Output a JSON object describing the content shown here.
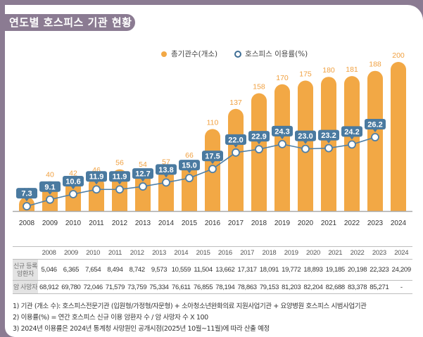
{
  "title": "연도별 호스피스 기관 현황",
  "legend": {
    "bar_label": "총기관수(개소)",
    "line_label": "호스피스 이용률(%)"
  },
  "colors": {
    "frame": "#8b7b92",
    "bar": "#f2a845",
    "bar_label": "#f0a040",
    "line": "#4f7fa6",
    "line_label_bg": "#4a7aa0"
  },
  "chart_data": {
    "type": "bar",
    "title": "연도별 호스피스 기관 현황",
    "xlabel": "",
    "ylabel": "",
    "categories": [
      "2008",
      "2009",
      "2010",
      "2011",
      "2012",
      "2013",
      "2014",
      "2015",
      "2016",
      "2017",
      "2018",
      "2019",
      "2020",
      "2021",
      "2022",
      "2023",
      "2024"
    ],
    "series": [
      {
        "name": "총기관수(개소)",
        "type": "bar",
        "values": [
          19,
          40,
          42,
          46,
          56,
          54,
          57,
          66,
          110,
          137,
          158,
          170,
          175,
          180,
          181,
          188,
          200
        ]
      },
      {
        "name": "호스피스 이용률(%)",
        "type": "line",
        "values": [
          7.3,
          9.1,
          10.6,
          11.9,
          11.9,
          12.7,
          13.8,
          15.0,
          17.5,
          22.0,
          22.9,
          24.3,
          23.0,
          23.2,
          24.2,
          26.2,
          null
        ],
        "labels": [
          "7.3",
          "9.1",
          "10.6",
          "11.9",
          "11.9",
          "12.7",
          "13.8",
          "15.0",
          "17.5",
          "22.0",
          "22.9",
          "24.3",
          "23.0",
          "23.2",
          "24.2",
          "26.2",
          ""
        ]
      }
    ],
    "ylim": [
      0,
      200
    ],
    "grid": false,
    "legend_position": "top-right"
  },
  "table": {
    "headers": [
      "",
      "2008",
      "2009",
      "2010",
      "2011",
      "2012",
      "2013",
      "2014",
      "2015",
      "2016",
      "2017",
      "2018",
      "2019",
      "2020",
      "2021",
      "2022",
      "2023",
      "2024"
    ],
    "rows": [
      {
        "label": "신규 등록 암환자",
        "values": [
          "5,046",
          "6,365",
          "7,654",
          "8,494",
          "8,742",
          "9,573",
          "10,559",
          "11,504",
          "13,662",
          "17,317",
          "18,091",
          "19,772",
          "18,893",
          "19,185",
          "20,198",
          "22,323",
          "24,209"
        ]
      },
      {
        "label": "암 사망자",
        "values": [
          "68,912",
          "69,780",
          "72,046",
          "71,579",
          "73,759",
          "75,334",
          "76,611",
          "76,855",
          "78,194",
          "78,863",
          "79,153",
          "81,203",
          "82,204",
          "82,688",
          "83,378",
          "85,271",
          "-"
        ]
      }
    ]
  },
  "notes": [
    "1) 기관 (개소 수): 호스피스전문기관 (입원형/가정형/자문형) + 소아청소년완화의료 지원사업기관 + 요양병원 호스피스 시범사업기관",
    "2) 이용률(%) = 연간 호스피스 신규 이용 암환자 수 / 암 사망자 수 X 100",
    "3) 2024년 이용률은 2024년 통계청 사망원인 공개시점(2025년 10월~11월)에 따라 산출 예정"
  ]
}
